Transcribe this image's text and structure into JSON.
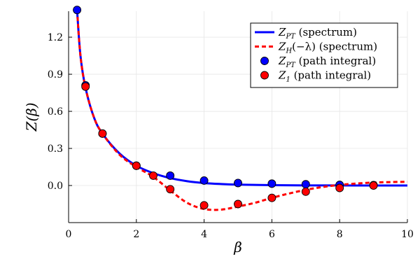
{
  "chart_data": {
    "type": "line",
    "xlabel": "β",
    "ylabel": "Z(β)",
    "xlim": [
      0,
      10
    ],
    "ylim": [
      -0.3,
      1.41
    ],
    "x_ticks": [
      0,
      2,
      4,
      6,
      8,
      10
    ],
    "y_ticks": [
      0.0,
      0.3,
      0.6,
      0.9,
      1.2
    ],
    "x_tick_labels": [
      "0",
      "2",
      "4",
      "6",
      "8",
      "10"
    ],
    "y_tick_labels": [
      "0.0",
      "0.3",
      "0.6",
      "0.9",
      "1.2"
    ],
    "grid": true,
    "legend_position": "top-right",
    "series": [
      {
        "name": "Z_PT (spectrum)",
        "kind": "line",
        "style": "solid",
        "color": "#0000ff",
        "x": [
          0.25,
          0.35,
          0.5,
          0.75,
          1.0,
          1.5,
          2.0,
          2.5,
          3.0,
          3.5,
          4.0,
          4.5,
          5.0,
          6.0,
          7.0,
          8.0,
          9.0,
          10.0
        ],
        "y": [
          1.42,
          1.05,
          0.79,
          0.55,
          0.42,
          0.26,
          0.16,
          0.1,
          0.06,
          0.035,
          0.02,
          0.012,
          0.007,
          0.003,
          0.001,
          0.0005,
          0.0002,
          0.0001
        ]
      },
      {
        "name": "Z_H(−λ) (spectrum)",
        "kind": "line",
        "style": "dashed",
        "color": "#ff0000",
        "x": [
          0.25,
          0.35,
          0.5,
          0.75,
          1.0,
          1.5,
          2.0,
          2.5,
          3.0,
          3.5,
          4.0,
          4.5,
          5.0,
          5.5,
          6.0,
          6.5,
          7.0,
          7.5,
          8.0,
          8.5,
          9.0,
          9.5,
          10.0
        ],
        "y": [
          1.42,
          1.05,
          0.79,
          0.55,
          0.42,
          0.25,
          0.15,
          0.07,
          -0.04,
          -0.14,
          -0.19,
          -0.195,
          -0.17,
          -0.14,
          -0.1,
          -0.065,
          -0.035,
          -0.012,
          0.005,
          0.016,
          0.024,
          0.028,
          0.03
        ]
      },
      {
        "name": "Z_PT (path integral)",
        "kind": "scatter",
        "color": "#0000ff",
        "x": [
          0.25,
          0.5,
          1.0,
          2.0,
          3.0,
          4.0,
          5.0,
          6.0,
          7.0,
          8.0,
          9.0
        ],
        "y": [
          1.42,
          0.81,
          0.42,
          0.16,
          0.08,
          0.04,
          0.02,
          0.015,
          0.01,
          0.005,
          0.003
        ]
      },
      {
        "name": "Z_1 (path integral)",
        "kind": "scatter",
        "color": "#ff0000",
        "x": [
          0.5,
          1.0,
          2.0,
          2.5,
          3.0,
          4.0,
          5.0,
          6.0,
          7.0,
          8.0,
          9.0
        ],
        "y": [
          0.8,
          0.42,
          0.16,
          0.08,
          -0.03,
          -0.16,
          -0.15,
          -0.1,
          -0.05,
          -0.02,
          0.0
        ]
      }
    ]
  },
  "legend": {
    "entries": [
      {
        "main": "Z",
        "sub": "PT",
        "rest": " (spectrum)"
      },
      {
        "main": "Z",
        "sub": "H",
        "rest": "(−λ) (spectrum)"
      },
      {
        "main": "Z",
        "sub": "PT",
        "rest": " (path integral)"
      },
      {
        "main": "Z",
        "sub": "1",
        "rest": " (path integral)"
      }
    ]
  }
}
